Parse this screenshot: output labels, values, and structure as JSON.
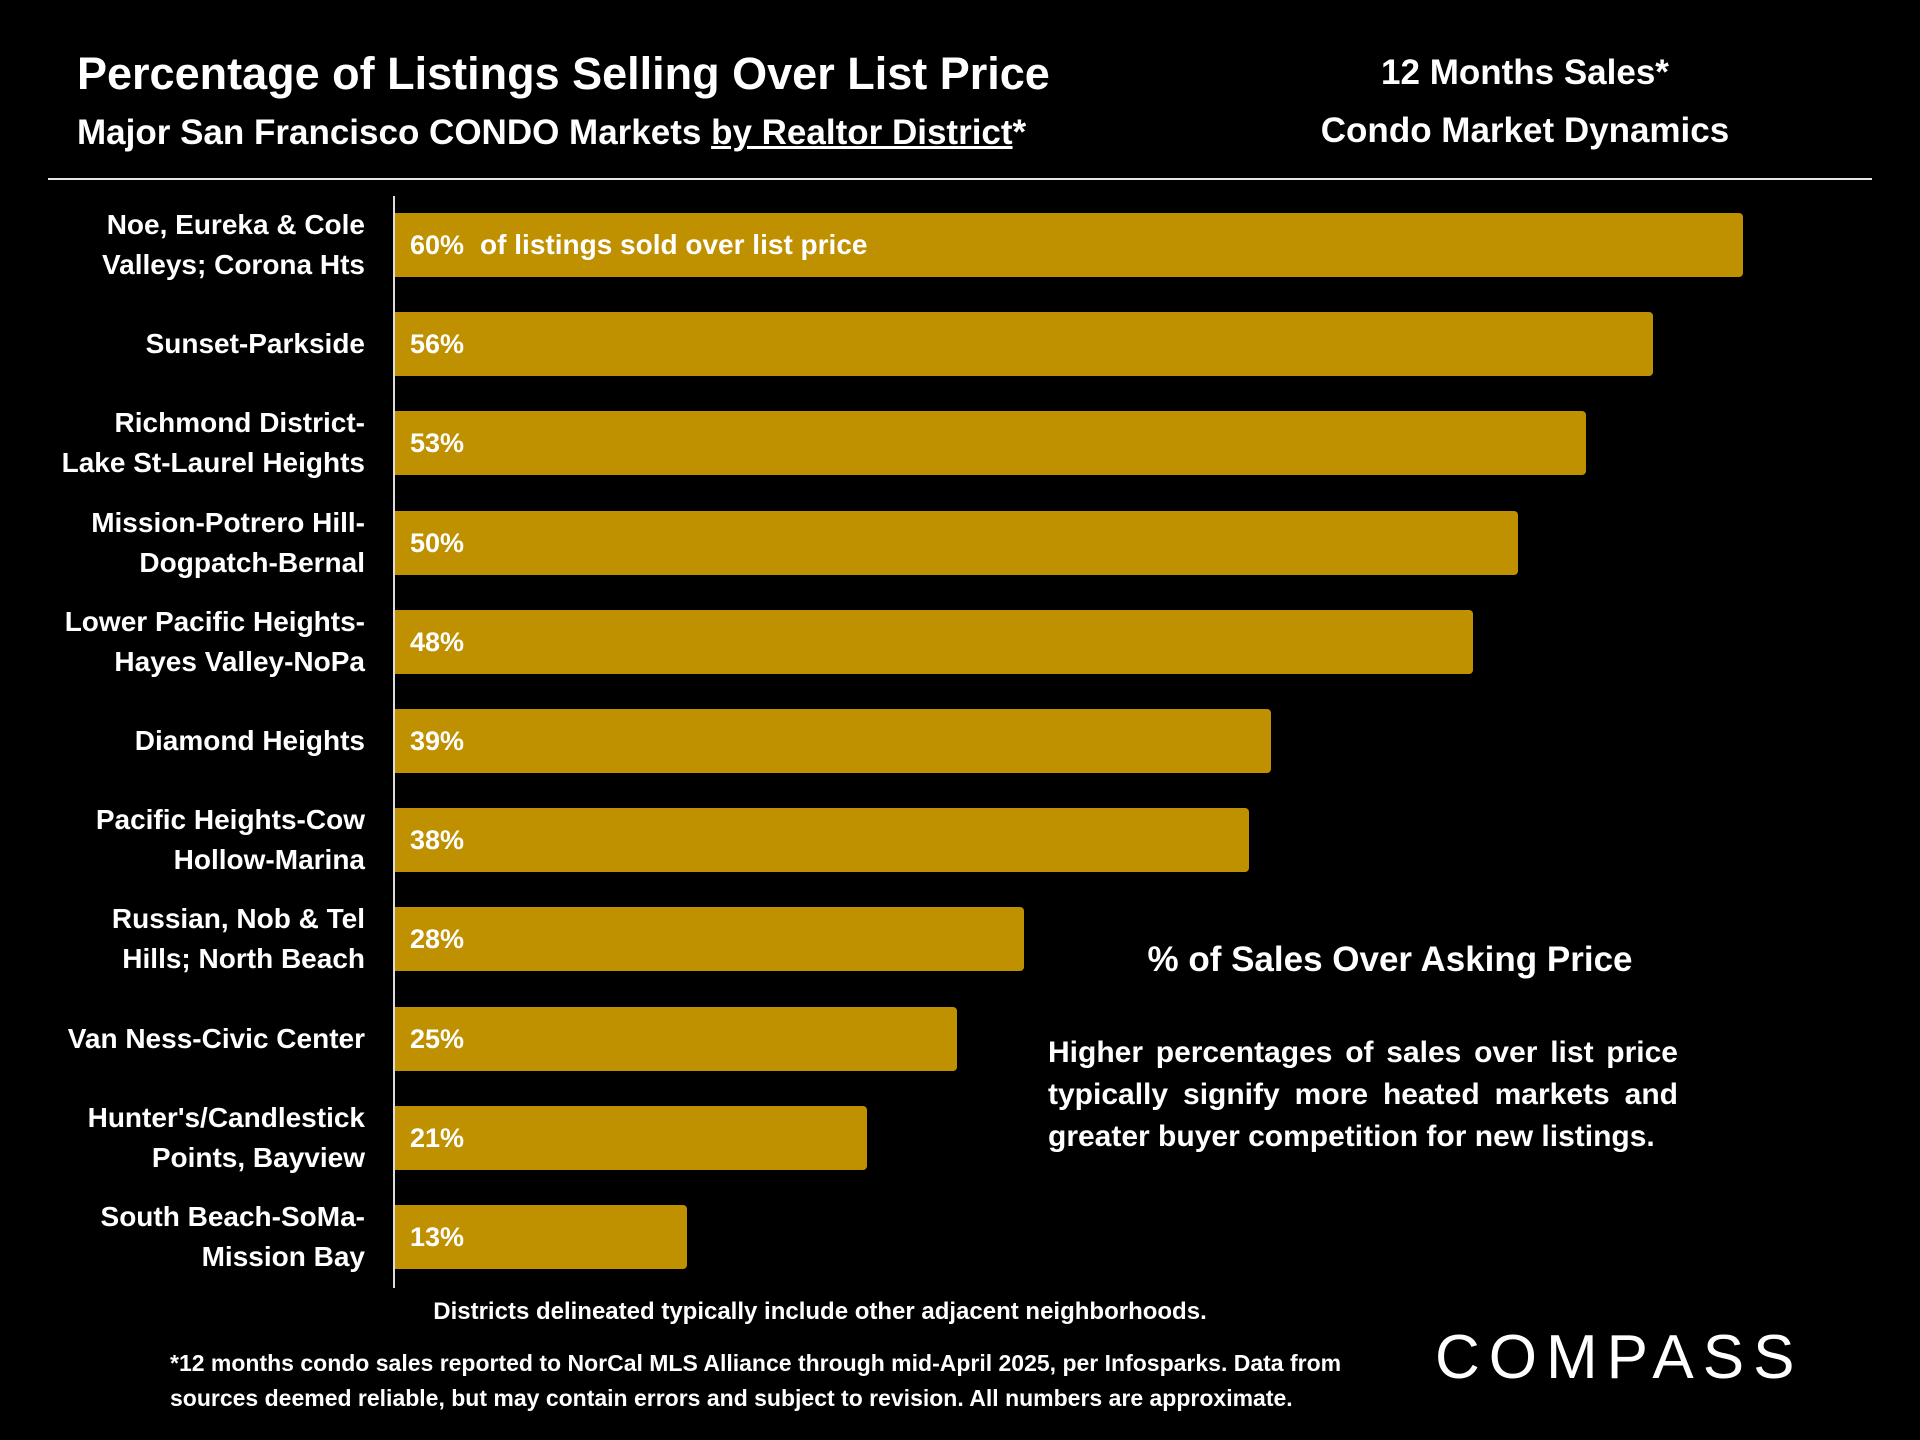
{
  "header": {
    "title": "Percentage of Listings Selling Over List Price",
    "subtitle_prefix": "Major San Francisco CONDO Markets ",
    "subtitle_underlined": "by Realtor District",
    "subtitle_suffix": "*",
    "right_line1": "12 Months Sales*",
    "right_line2": "Condo Market Dynamics"
  },
  "chart_data": {
    "type": "bar",
    "orientation": "horizontal",
    "categories": [
      [
        "Noe, Eureka & Cole",
        "Valleys; Corona Hts"
      ],
      [
        "Sunset-Parkside"
      ],
      [
        "Richmond District-",
        "Lake St-Laurel Heights"
      ],
      [
        "Mission-Potrero Hill-",
        "Dogpatch-Bernal"
      ],
      [
        "Lower Pacific Heights-",
        "Hayes Valley-NoPa"
      ],
      [
        "Diamond Heights"
      ],
      [
        "Pacific Heights-Cow",
        "Hollow-Marina"
      ],
      [
        "Russian, Nob & Tel",
        "Hills; North Beach"
      ],
      [
        "Van Ness-Civic Center"
      ],
      [
        "Hunter's/Candlestick",
        "Points, Bayview"
      ],
      [
        "South Beach-SoMa-",
        "Mission Bay"
      ]
    ],
    "values": [
      60,
      56,
      53,
      50,
      48,
      39,
      38,
      28,
      25,
      21,
      13
    ],
    "value_labels": [
      "60%",
      "56%",
      "53%",
      "50%",
      "48%",
      "39%",
      "38%",
      "28%",
      "25%",
      "21%",
      "13%"
    ],
    "first_bar_note": "of listings sold over list price",
    "bar_color": "#bf9000",
    "grid": false,
    "xlim": [
      0,
      60
    ]
  },
  "side_panel": {
    "title": "% of Sales Over Asking Price",
    "text": "Higher percentages of sales over list price typically signify more heated markets and greater buyer competition for new listings."
  },
  "notes": {
    "districts": "Districts delineated typically include other adjacent neighborhoods.",
    "footnote_line1": "*12 months condo sales reported to NorCal MLS Alliance through mid-April 2025, per Infosparks. Data from",
    "footnote_line2": "sources deemed reliable, but may contain errors and subject to revision. All numbers are approximate."
  },
  "logo": {
    "text": "COMPASS"
  }
}
